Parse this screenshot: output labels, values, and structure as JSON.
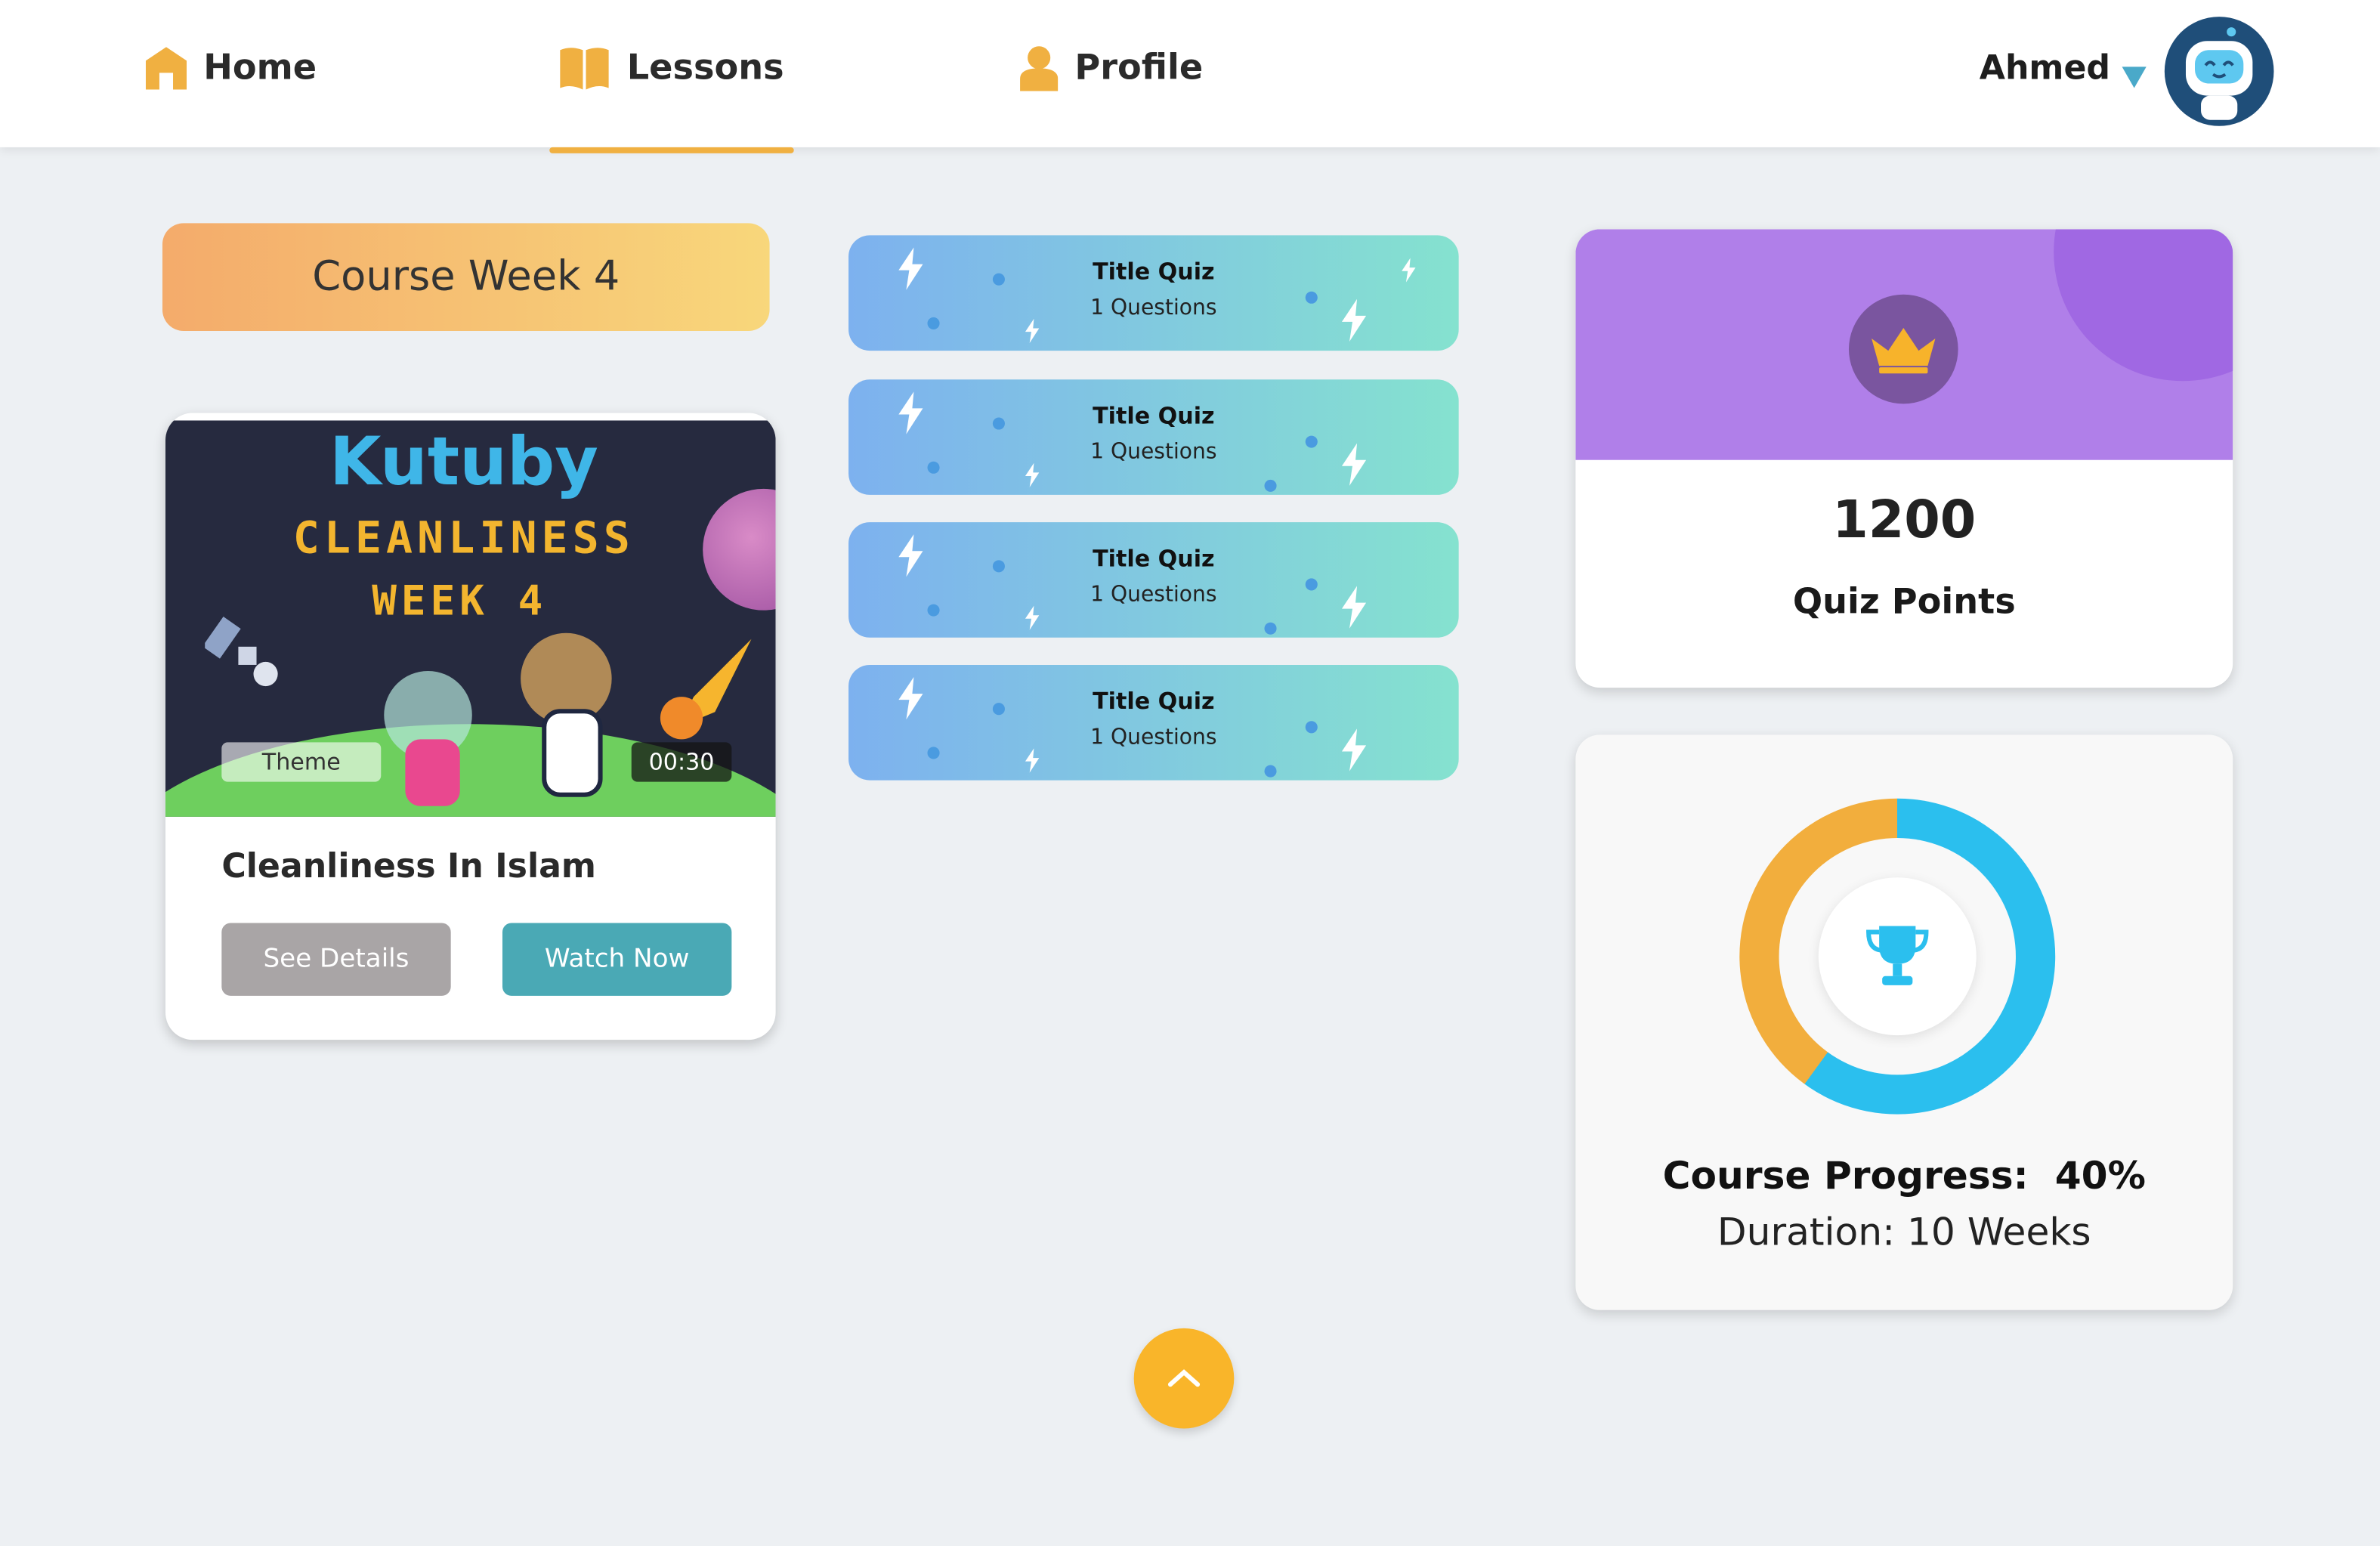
{
  "nav": {
    "items": [
      {
        "label": "Home",
        "icon": "home-icon"
      },
      {
        "label": "Lessons",
        "icon": "book-icon",
        "active": true
      },
      {
        "label": "Profile",
        "icon": "user-icon"
      }
    ],
    "user_name": "Ahmed"
  },
  "course": {
    "week_label": "Course Week 4",
    "video": {
      "logo": "Kutuby",
      "thumb_line1": "CLEANLINESS",
      "thumb_line2": "WEEK 4",
      "theme_chip": "Theme",
      "duration": "00:30",
      "title": "Cleanliness In Islam",
      "see_details": "See Details",
      "watch_now": "Watch Now"
    }
  },
  "quizzes": [
    {
      "title": "Title Quiz",
      "subtitle": "1 Questions"
    },
    {
      "title": "Title Quiz",
      "subtitle": "1 Questions"
    },
    {
      "title": "Title Quiz",
      "subtitle": "1 Questions"
    },
    {
      "title": "Title Quiz",
      "subtitle": "1 Questions"
    }
  ],
  "points": {
    "value": "1200",
    "label": "Quiz Points"
  },
  "progress": {
    "label": "Course Progress:",
    "percent_text": "40%",
    "percent": 40,
    "duration": "Duration: 10 Weeks",
    "colors": {
      "done": "#f2ae3d",
      "remaining": "#2bbfee"
    }
  },
  "colors": {
    "accent": "#f0b041",
    "background": "#edf0f3",
    "watch_button": "#4aa9b5",
    "details_button": "#a9a5a6",
    "points_header": "#b07fe9"
  }
}
